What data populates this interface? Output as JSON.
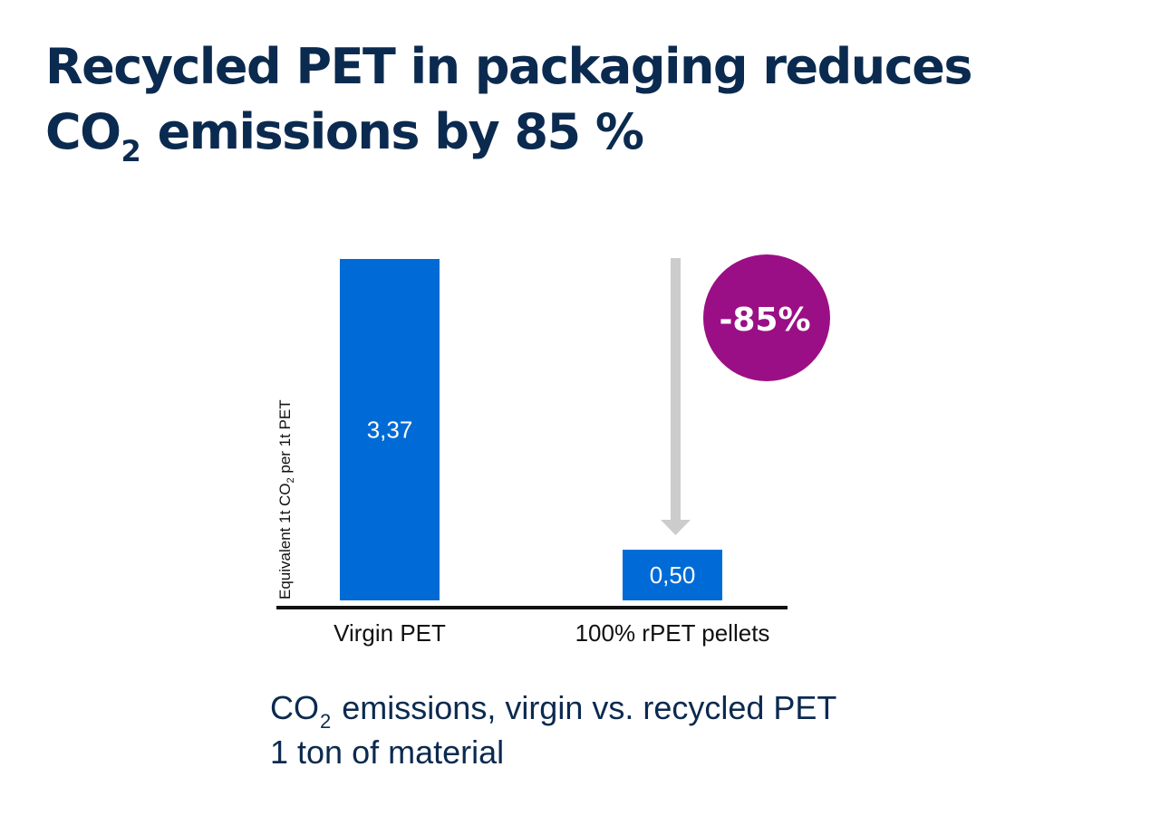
{
  "title": {
    "line1": "Recycled PET in packaging reduces",
    "co": "CO",
    "sub": "2",
    "rest": "emissions by 85 %"
  },
  "chart_data": {
    "type": "bar",
    "categories": [
      "Virgin PET",
      "100% rPET pellets"
    ],
    "values": [
      3.37,
      0.5
    ],
    "value_labels": [
      "3,37",
      "0,50"
    ],
    "ylabel": {
      "pre": "Equivalent 1t CO",
      "sub": "2",
      "post": " per 1t PET"
    },
    "ylim": [
      0,
      3.37
    ],
    "grid": false,
    "annotation": {
      "label": "-85%",
      "color": "#9b0f86",
      "arrow_color": "#cccccc"
    },
    "bar_color": "#006bd6",
    "axis_color": "#111111"
  },
  "caption": {
    "co": "CO",
    "sub": "2",
    "line1_rest": "emissions, virgin vs. recycled PET",
    "line2": "1 ton of material"
  }
}
